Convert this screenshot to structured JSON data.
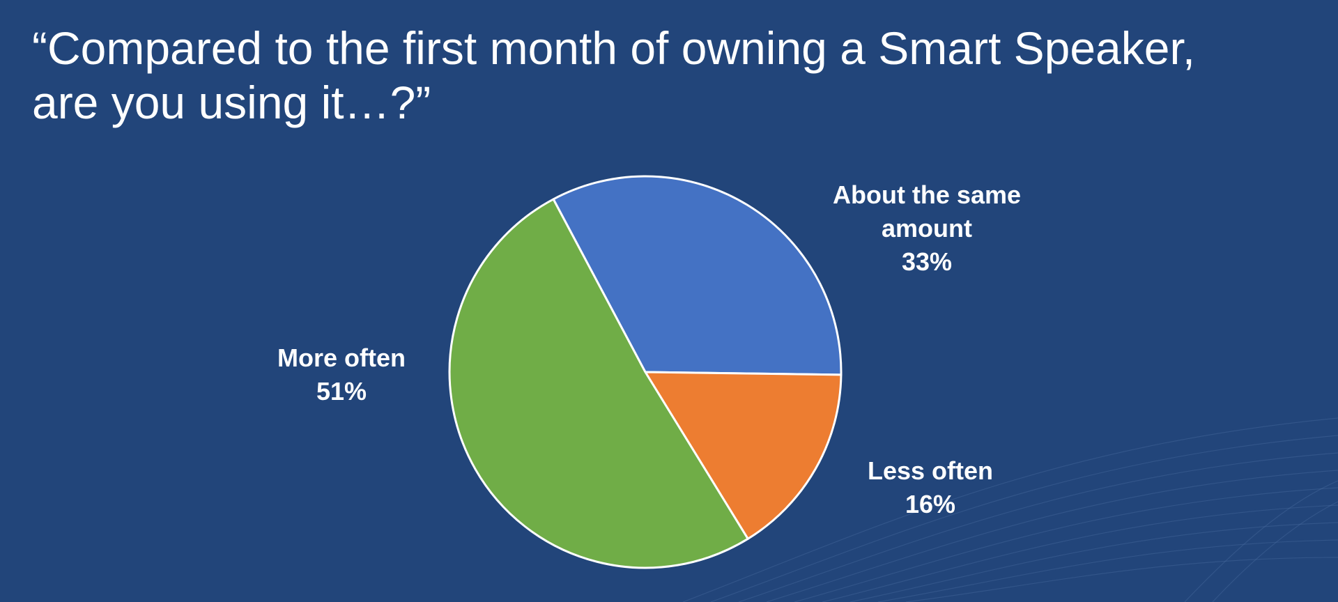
{
  "chart_data": {
    "type": "pie",
    "title_lines": [
      "“Compared to the first month of owning a Smart Speaker,",
      "are you using it…?”"
    ],
    "slices": [
      {
        "label_lines": [
          "About the same",
          "amount"
        ],
        "value": 33,
        "value_label": "33%",
        "color": "#4472c4"
      },
      {
        "label_lines": [
          "Less often"
        ],
        "value": 16,
        "value_label": "16%",
        "color": "#ed7d31"
      },
      {
        "label_lines": [
          "More often"
        ],
        "value": 51,
        "value_label": "51%",
        "color": "#70ad47"
      }
    ],
    "start_angle_deg": -28,
    "direction": "clockwise",
    "legend": "none",
    "grid": false
  },
  "colors": {
    "background": "#22457a",
    "text": "#ffffff",
    "slice_border": "#ffffff"
  }
}
